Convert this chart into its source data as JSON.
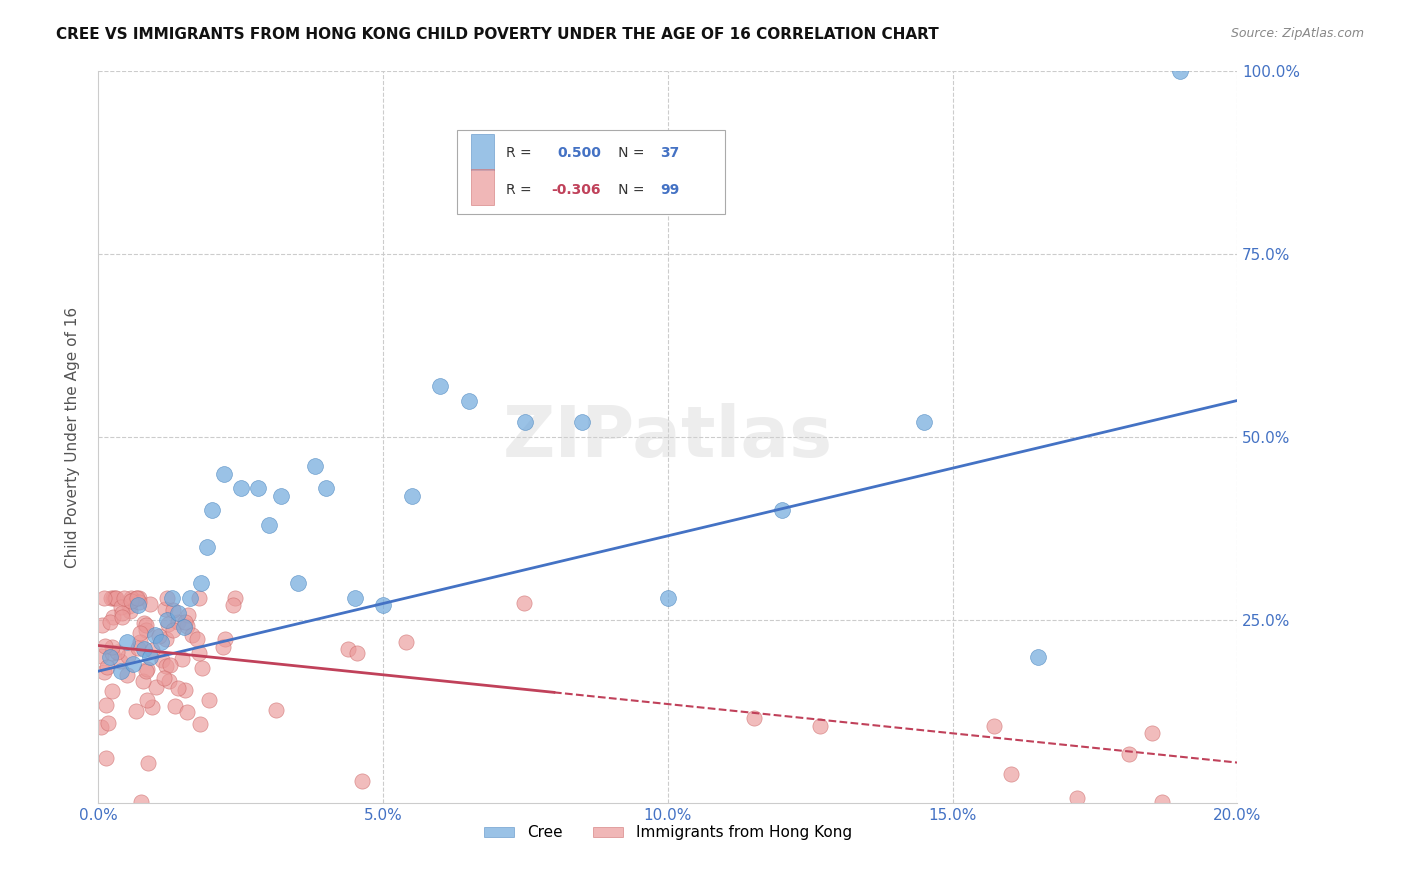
{
  "title": "CREE VS IMMIGRANTS FROM HONG KONG CHILD POVERTY UNDER THE AGE OF 16 CORRELATION CHART",
  "source": "Source: ZipAtlas.com",
  "ylabel": "Child Poverty Under the Age of 16",
  "xlim": [
    0.0,
    0.2
  ],
  "ylim": [
    0.0,
    1.0
  ],
  "cree_R": 0.5,
  "cree_N": 37,
  "hk_R": -0.306,
  "hk_N": 99,
  "cree_color": "#6fa8dc",
  "hk_color": "#ea9999",
  "cree_edge_color": "#4a86c0",
  "hk_edge_color": "#cc6666",
  "watermark": "ZIPatlas",
  "background_color": "#ffffff",
  "grid_color": "#cccccc",
  "blue_line_color": "#4472c4",
  "pink_line_color": "#c0415a",
  "title_color": "#111111",
  "source_color": "#888888",
  "axis_tick_color": "#4472c4",
  "ylabel_color": "#555555"
}
